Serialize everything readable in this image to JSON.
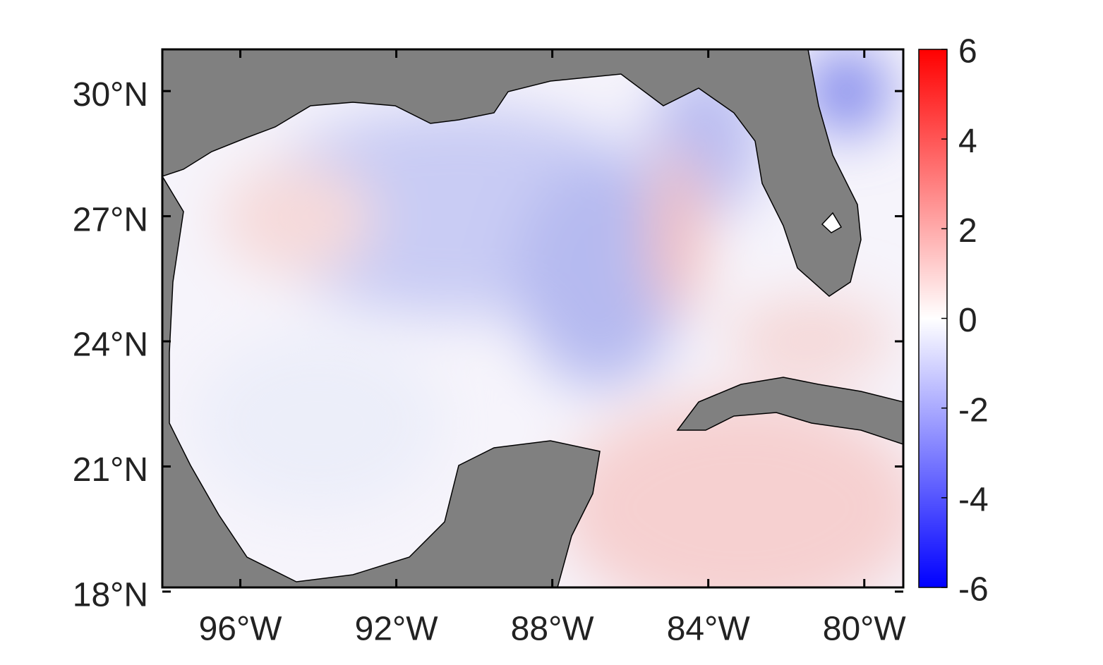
{
  "chart_data": {
    "type": "map",
    "xlim": [
      -98,
      -79
    ],
    "ylim": [
      18.1,
      31
    ],
    "xticks": [
      {
        "value": -96,
        "label": "96°W"
      },
      {
        "value": -92,
        "label": "92°W"
      },
      {
        "value": -88,
        "label": "88°W"
      },
      {
        "value": -84,
        "label": "84°W"
      },
      {
        "value": -80,
        "label": "80°W"
      }
    ],
    "yticks": [
      {
        "value": 18,
        "label": "18°N"
      },
      {
        "value": 21,
        "label": "21°N"
      },
      {
        "value": 24,
        "label": "24°N"
      },
      {
        "value": 27,
        "label": "27°N"
      },
      {
        "value": 30,
        "label": "30°N"
      }
    ],
    "colorbar": {
      "clim": [
        -6,
        6
      ],
      "ticks": [
        -6,
        -4,
        -2,
        0,
        2,
        4,
        6
      ],
      "colors": [
        "#0000ff",
        "#ffffff",
        "#ff0000"
      ]
    },
    "land_color": "#808080"
  }
}
